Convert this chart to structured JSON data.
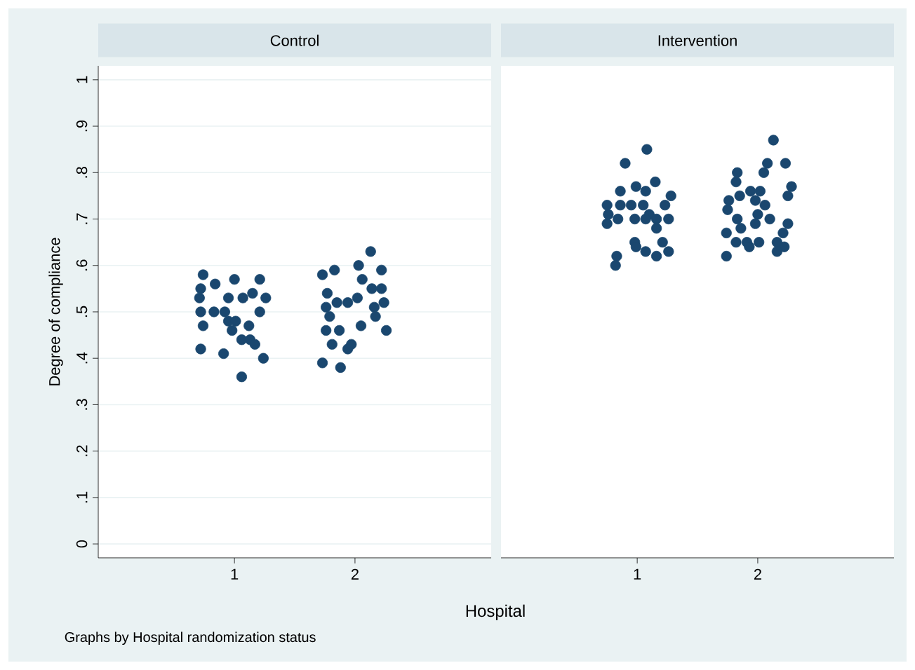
{
  "chart_data": [
    {
      "type": "scatter",
      "title": "Control",
      "xlabel": "Hospital",
      "ylabel": "Degree of compliance",
      "annotations": [
        "Graphs by Hospital randomization status"
      ],
      "marker": "circle",
      "grid": "y",
      "xlim": [
        -0.13,
        3.13
      ],
      "ylim": [
        -0.03,
        1.03
      ],
      "xticks": [
        1,
        2
      ],
      "yticks": [
        0,
        {
          "value": 0.1,
          "label": ".1"
        },
        {
          "value": 0.2,
          "label": ".2"
        },
        {
          "value": 0.3,
          "label": ".3"
        },
        {
          "value": 0.4,
          "label": ".4"
        },
        {
          "value": 0.5,
          "label": ".5"
        },
        {
          "value": 0.6,
          "label": ".6"
        },
        {
          "value": 0.7,
          "label": ".7"
        },
        {
          "value": 0.8,
          "label": ".8"
        },
        {
          "value": 0.9,
          "label": ".9"
        },
        1
      ],
      "series": [
        {
          "color": "#1a476f",
          "x": [
            0.74,
            0.72,
            0.84,
            1.0,
            1.21,
            0.71,
            0.95,
            1.07,
            1.15,
            1.26,
            0.72,
            0.83,
            0.92,
            1.21,
            0.95,
            1.01,
            0.74,
            1.12,
            0.98,
            1.06,
            1.13,
            1.17,
            0.72,
            0.91,
            1.24,
            1.06,
            1.73,
            1.83,
            2.13,
            2.03,
            2.22,
            2.06,
            2.14,
            2.22,
            1.77,
            2.02,
            2.24,
            1.76,
            1.85,
            1.94,
            2.16,
            1.79,
            2.17,
            1.76,
            1.87,
            2.05,
            2.26,
            1.81,
            1.94,
            1.97,
            1.73,
            1.88
          ],
          "values": [
            0.58,
            0.55,
            0.56,
            0.57,
            0.57,
            0.53,
            0.53,
            0.53,
            0.54,
            0.53,
            0.5,
            0.5,
            0.5,
            0.5,
            0.48,
            0.48,
            0.47,
            0.47,
            0.46,
            0.44,
            0.44,
            0.43,
            0.42,
            0.41,
            0.4,
            0.36,
            0.58,
            0.59,
            0.63,
            0.6,
            0.59,
            0.57,
            0.55,
            0.55,
            0.54,
            0.53,
            0.52,
            0.51,
            0.52,
            0.52,
            0.51,
            0.49,
            0.49,
            0.46,
            0.46,
            0.47,
            0.46,
            0.43,
            0.42,
            0.43,
            0.39,
            0.38
          ]
        }
      ]
    },
    {
      "type": "scatter",
      "title": "Intervention",
      "marker": "circle",
      "grid": "y",
      "tick_labels": "x",
      "xlim": [
        -0.13,
        3.13
      ],
      "ylim": [
        -0.03,
        1.03
      ],
      "xticks": [
        1,
        2
      ],
      "yticks": [
        {
          "value": 0,
          "label": null
        },
        {
          "value": 0.1,
          "label": null
        },
        {
          "value": 0.2,
          "label": null
        },
        {
          "value": 0.3,
          "label": null
        },
        {
          "value": 0.4,
          "label": null
        },
        {
          "value": 0.5,
          "label": null
        },
        {
          "value": 0.6,
          "label": null
        },
        {
          "value": 0.7,
          "label": null
        },
        {
          "value": 0.8,
          "label": null
        },
        {
          "value": 0.9,
          "label": null
        },
        {
          "value": 1,
          "label": null
        }
      ],
      "series": [
        {
          "color": "#1a476f",
          "x": [
            1.08,
            0.9,
            1.15,
            0.99,
            0.86,
            1.07,
            1.28,
            0.75,
            1.23,
            0.86,
            0.95,
            1.05,
            0.76,
            1.1,
            0.84,
            0.98,
            1.07,
            1.16,
            1.26,
            0.75,
            1.16,
            0.98,
            1.21,
            0.99,
            1.07,
            1.16,
            1.26,
            0.83,
            0.82,
            2.13,
            2.08,
            2.23,
            1.83,
            2.05,
            1.82,
            2.28,
            1.94,
            2.02,
            1.85,
            2.25,
            1.76,
            1.98,
            2.06,
            1.75,
            2.0,
            1.83,
            2.1,
            2.25,
            1.98,
            1.86,
            2.21,
            1.74,
            1.82,
            1.91,
            2.01,
            2.16,
            1.93,
            2.22,
            2.16,
            1.74
          ],
          "values": [
            0.85,
            0.82,
            0.78,
            0.77,
            0.76,
            0.76,
            0.75,
            0.73,
            0.73,
            0.73,
            0.73,
            0.73,
            0.71,
            0.71,
            0.7,
            0.7,
            0.7,
            0.7,
            0.7,
            0.69,
            0.68,
            0.65,
            0.65,
            0.64,
            0.63,
            0.62,
            0.63,
            0.62,
            0.6,
            0.87,
            0.82,
            0.82,
            0.8,
            0.8,
            0.78,
            0.77,
            0.76,
            0.76,
            0.75,
            0.75,
            0.74,
            0.74,
            0.73,
            0.72,
            0.71,
            0.7,
            0.7,
            0.69,
            0.69,
            0.68,
            0.67,
            0.67,
            0.65,
            0.65,
            0.65,
            0.65,
            0.64,
            0.64,
            0.63,
            0.62
          ]
        }
      ]
    }
  ]
}
